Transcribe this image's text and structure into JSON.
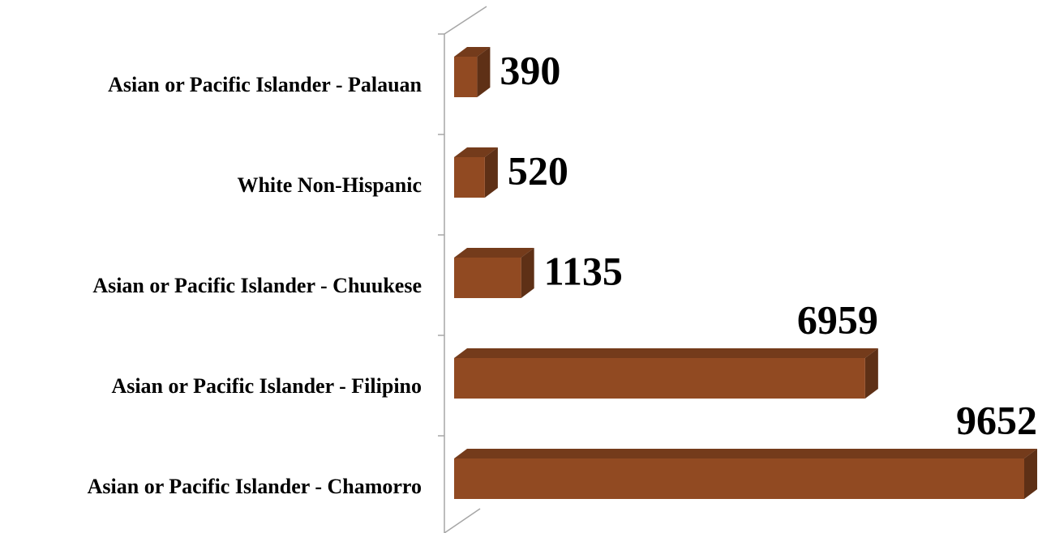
{
  "chart_data": {
    "type": "bar",
    "orientation": "horizontal",
    "categories": [
      "Asian or Pacific Islander - Palauan",
      "White Non-Hispanic",
      "Asian or Pacific Islander - Chuukese",
      "Asian or Pacific Islander - Filipino",
      "Asian or Pacific Islander - Chamorro"
    ],
    "values": [
      390,
      520,
      1135,
      6959,
      9652
    ],
    "color": "#914a22"
  }
}
